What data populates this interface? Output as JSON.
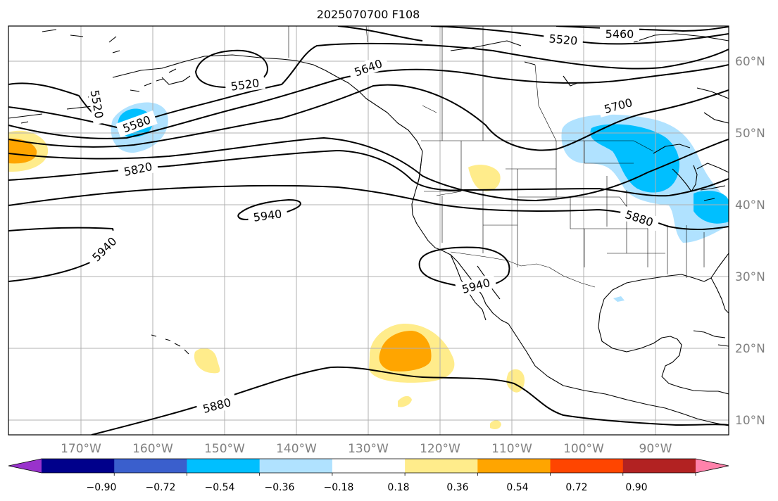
{
  "title": "2025070700 F108",
  "lon_labels": [
    "170°W",
    "160°W",
    "150°W",
    "140°W",
    "130°W",
    "120°W",
    "110°W",
    "100°W",
    "90°W"
  ],
  "lat_labels": [
    "60°N",
    "50°N",
    "40°N",
    "30°N",
    "20°N",
    "10°N"
  ],
  "contour_labels": [
    "5460",
    "5520",
    "5520",
    "5520",
    "5580",
    "5640",
    "5700",
    "5820",
    "5880",
    "5880",
    "5940",
    "5940",
    "5940"
  ],
  "colorbar": {
    "colors": [
      "#9932CC",
      "#00008B",
      "#3A5FCD",
      "#00BFFF",
      "#B0E2FF",
      "#FFFFFF",
      "#FFEC8B",
      "#FFA500",
      "#FF4500",
      "#B22222",
      "#FF82AB"
    ],
    "tick_labels": [
      "−0.90",
      "−0.72",
      "−0.54",
      "−0.36",
      "−0.18",
      "0.18",
      "0.36",
      "0.54",
      "0.72",
      "0.90"
    ]
  },
  "colors": {
    "contour": "#000000",
    "coast": "#000000",
    "grid": "#b0b0b0",
    "axis_label": "#808080"
  }
}
